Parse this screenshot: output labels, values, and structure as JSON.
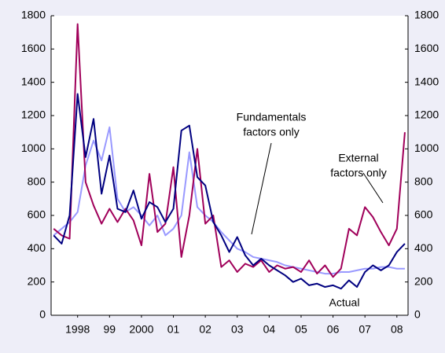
{
  "chart_data": {
    "type": "line",
    "x": [
      1997.75,
      1998,
      1998.25,
      1998.5,
      1998.75,
      1999,
      1999.25,
      1999.5,
      1999.75,
      2000,
      2000.25,
      2000.5,
      2000.75,
      2001,
      2001.25,
      2001.5,
      2001.75,
      2002,
      2002.25,
      2002.5,
      2002.75,
      2003,
      2003.25,
      2003.5,
      2003.75,
      2004,
      2004.25,
      2004.5,
      2004.75,
      2005,
      2005.25,
      2005.5,
      2005.75,
      2006,
      2006.25,
      2006.5,
      2006.75,
      2007,
      2007.25,
      2007.5,
      2007.75,
      2008,
      2008.25,
      2008.5,
      2008.75
    ],
    "series": [
      {
        "color": "#9999ff",
        "values": [
          480,
          520,
          560,
          620,
          900,
          1050,
          930,
          1130,
          700,
          620,
          650,
          600,
          540,
          600,
          480,
          520,
          600,
          980,
          650,
          600,
          560,
          500,
          450,
          400,
          380,
          350,
          340,
          330,
          320,
          300,
          290,
          280,
          270,
          260,
          250,
          250,
          260,
          260,
          270,
          280,
          280,
          290,
          290,
          280,
          280
        ]
      },
      {
        "color": "#a0005a",
        "values": [
          520,
          480,
          460,
          1750,
          800,
          660,
          550,
          640,
          560,
          640,
          570,
          420,
          850,
          500,
          550,
          890,
          350,
          600,
          1000,
          550,
          600,
          290,
          330,
          260,
          310,
          290,
          330,
          260,
          300,
          280,
          290,
          260,
          330,
          250,
          300,
          230,
          280,
          520,
          480,
          650,
          590,
          500,
          420,
          520,
          1100
        ]
      },
      {
        "color": "#000080",
        "values": [
          480,
          430,
          600,
          1330,
          950,
          1180,
          730,
          960,
          640,
          620,
          750,
          580,
          680,
          650,
          560,
          640,
          1110,
          1140,
          830,
          780,
          560,
          480,
          380,
          470,
          360,
          300,
          340,
          300,
          270,
          240,
          200,
          220,
          180,
          190,
          170,
          180,
          160,
          210,
          170,
          260,
          300,
          270,
          300,
          380,
          430
        ]
      }
    ],
    "xlim": [
      1997.67,
      2008.85
    ],
    "xticks": [
      {
        "value": 1998.5,
        "label": "1998"
      },
      {
        "value": 1999.5,
        "label": "99"
      },
      {
        "value": 2000.5,
        "label": "2000"
      },
      {
        "value": 2001.5,
        "label": "01"
      },
      {
        "value": 2002.5,
        "label": "02"
      },
      {
        "value": 2003.5,
        "label": "03"
      },
      {
        "value": 2004.5,
        "label": "04"
      },
      {
        "value": 2005.5,
        "label": "05"
      },
      {
        "value": 2006.5,
        "label": "06"
      },
      {
        "value": 2007.5,
        "label": "07"
      },
      {
        "value": 2008.5,
        "label": "08"
      }
    ],
    "ylim": [
      0,
      1800
    ],
    "yticks": [
      0,
      200,
      400,
      600,
      800,
      1000,
      1200,
      1400,
      1600,
      1800
    ],
    "y2lim": [
      0,
      1800
    ],
    "y2ticks": [
      0,
      200,
      400,
      600,
      800,
      1000,
      1200,
      1400,
      1600,
      1800
    ],
    "annotations": [
      {
        "lines": [
          "Fundamentals",
          "factors only"
        ]
      },
      {
        "lines": [
          "External",
          "factors only"
        ]
      },
      {
        "lines": [
          "Actual"
        ]
      }
    ]
  }
}
